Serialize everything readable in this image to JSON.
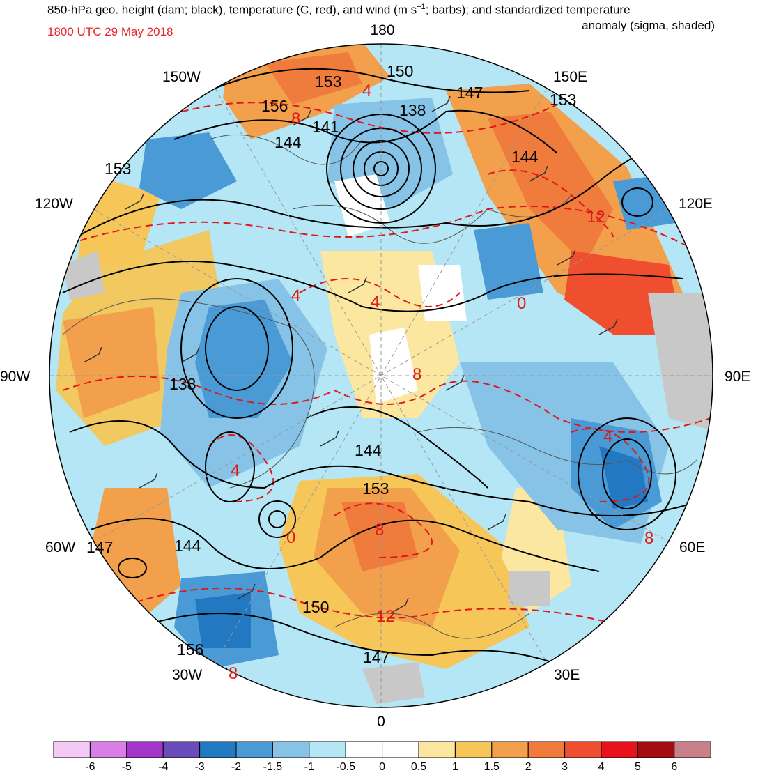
{
  "header": {
    "title_main": "850-hPa geo. height (dam; black), temperature (C, red), and wind (m s",
    "title_sup": "−1",
    "title_tail": "; barbs); and standardized temperature",
    "title_line2": "anomaly (sigma, shaded)",
    "valid_time": "1800 UTC 29 May 2018"
  },
  "colors": {
    "height_contour": "#000000",
    "temperature_contour": "#e01818",
    "coastline": "#555555",
    "land_missing": "#c8c8c8"
  },
  "longitude_labels": [
    "180",
    "150E",
    "120E",
    "90E",
    "60E",
    "30E",
    "0",
    "30W",
    "60W",
    "90W",
    "120W",
    "150W"
  ],
  "height_contour_labels": [
    "150",
    "153",
    "147",
    "153",
    "156",
    "138",
    "141",
    "144",
    "153",
    "144",
    "138",
    "144",
    "153",
    "147",
    "144",
    "150",
    "156",
    "147"
  ],
  "temperature_contour_labels": [
    "4",
    "8",
    "12",
    "0",
    "4",
    "4",
    "8",
    "4",
    "8",
    "4",
    "8",
    "12",
    "8",
    "0"
  ],
  "colorbar": {
    "tick_labels": [
      "-6",
      "-5",
      "-4",
      "-3",
      "-2",
      "-1.5",
      "-1",
      "-0.5",
      "0",
      "0.5",
      "1",
      "1.5",
      "2",
      "3",
      "4",
      "5",
      "6"
    ],
    "bin_colors": [
      "#f5c9f5",
      "#d97ee6",
      "#a336c9",
      "#6a4cb8",
      "#2278c1",
      "#4a9ad6",
      "#86c3e6",
      "#b4e6f5",
      "#ffffff",
      "#ffffff",
      "#fbe7a0",
      "#f6c659",
      "#f3a04c",
      "#ef7c3c",
      "#ef4f2f",
      "#e8131a",
      "#a30c10",
      "#c8808a"
    ]
  }
}
